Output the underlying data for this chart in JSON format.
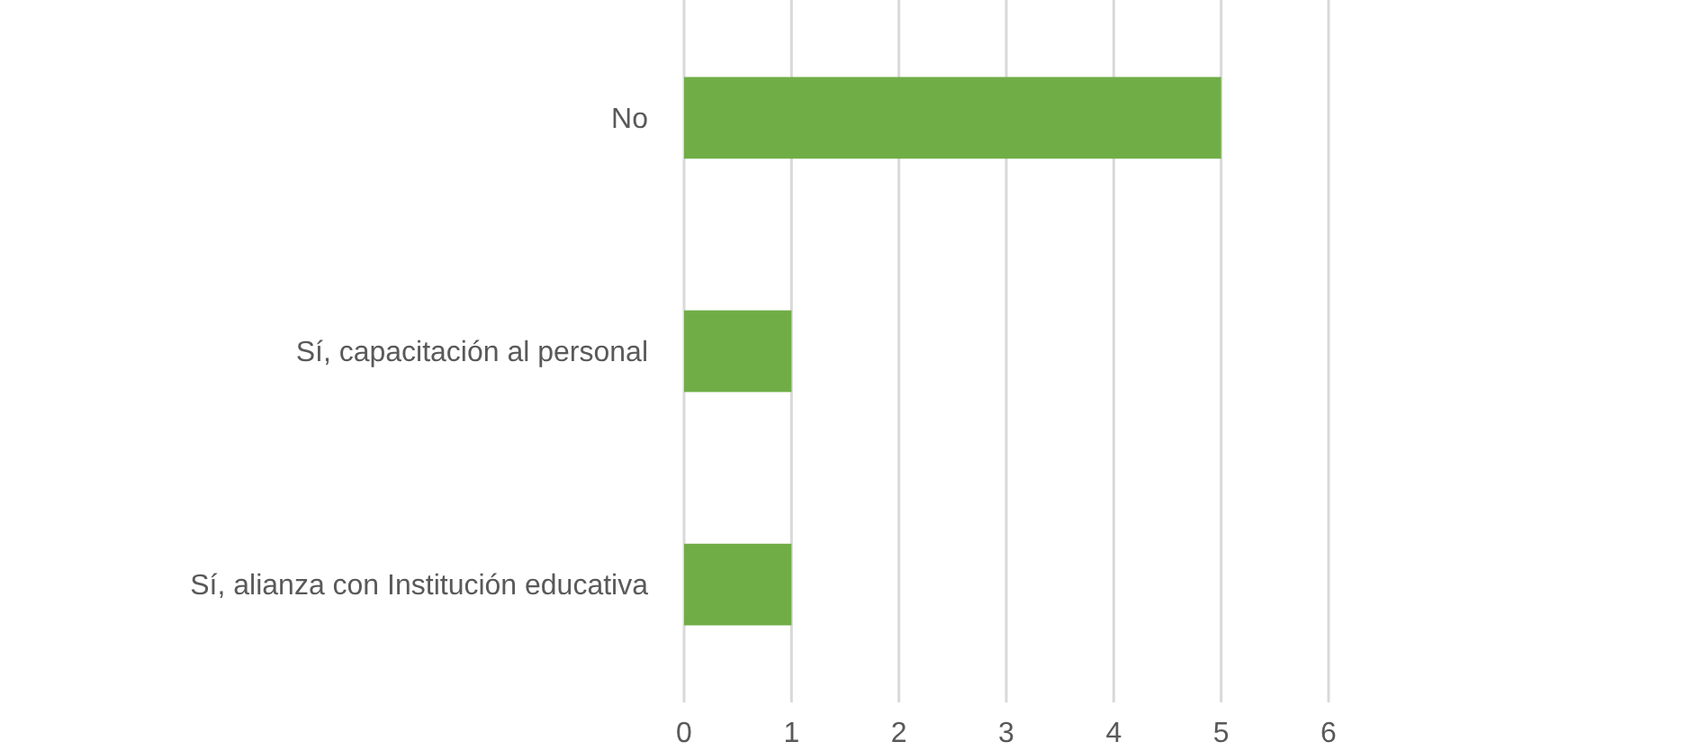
{
  "chart_data": {
    "type": "bar",
    "orientation": "horizontal",
    "categories": [
      "No",
      "Sí, capacitación al personal",
      "Sí, alianza con Institución educativa"
    ],
    "values": [
      5,
      1,
      1
    ],
    "color": "#70ad47",
    "xlim": [
      0,
      6
    ],
    "xticks": [
      0,
      1,
      2,
      3,
      4,
      5,
      6
    ],
    "grid": "x"
  }
}
